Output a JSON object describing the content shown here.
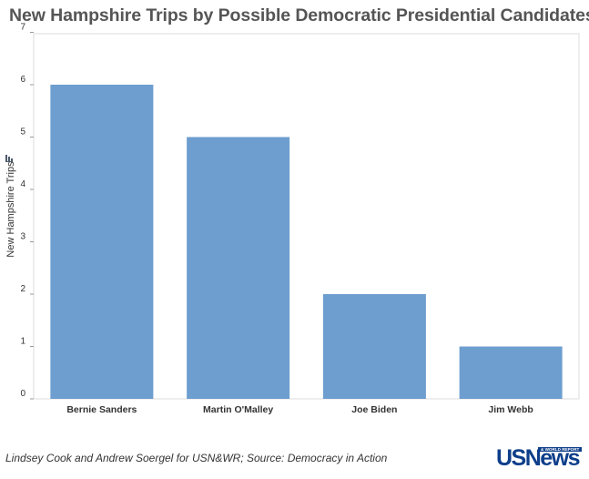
{
  "title": "New Hampshire Trips by Possible Democratic Presidential Candidates",
  "source": "Lindsey Cook and Andrew Soergel for USN&WR; Source: Democracy in Action",
  "logo": {
    "main": "USNews",
    "tag": "& WORLD REPORT"
  },
  "colors": {
    "bar": "#6d9ecf",
    "axis": "#999999",
    "text": "#333333"
  },
  "chart_data": {
    "type": "bar",
    "title": "New Hampshire Trips by Possible Democratic Presidential Candidates",
    "ylabel": "New Hampshire Trips",
    "xlabel": "",
    "categories": [
      "Bernie Sanders",
      "Martin O'Malley",
      "Joe Biden",
      "Jim Webb"
    ],
    "values": [
      6,
      5,
      2,
      1
    ],
    "ylim": [
      0,
      7
    ],
    "yticks": [
      0,
      1,
      2,
      3,
      4,
      5,
      6,
      7
    ],
    "grid": false,
    "legend": "none"
  }
}
